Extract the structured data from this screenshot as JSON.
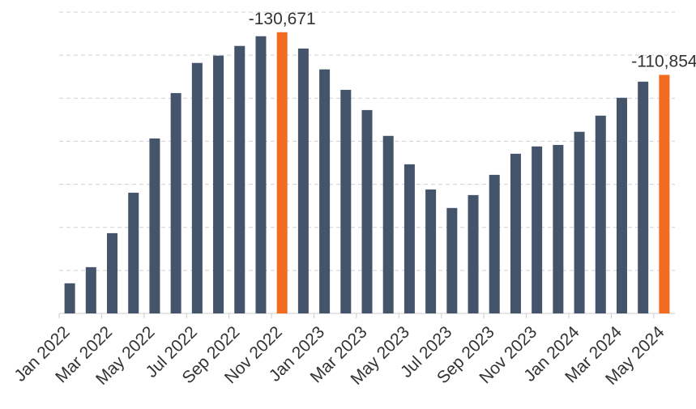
{
  "chart_data": {
    "type": "bar",
    "categories": [
      "Jan 2022",
      null,
      "Mar 2022",
      null,
      "May 2022",
      null,
      "Jul 2022",
      null,
      "Sep 2022",
      null,
      "Nov 2022",
      null,
      "Jan 2023",
      null,
      "Mar 2023",
      null,
      "May 2023",
      null,
      "Jul 2023",
      null,
      "Sep 2023",
      null,
      "Nov 2023",
      null,
      "Jan 2024",
      null,
      "Mar 2024",
      null,
      "May 2024"
    ],
    "values": [
      -14000,
      -21500,
      -37300,
      -56100,
      -81300,
      -102400,
      -116400,
      -119800,
      -124300,
      -128800,
      -130671,
      -123100,
      -113400,
      -103900,
      -94500,
      -82500,
      -69300,
      -57600,
      -49000,
      -55000,
      -64400,
      -74200,
      -77600,
      -78300,
      -84400,
      -91900,
      -100200,
      -107700,
      -110854
    ],
    "value_labels": [
      null,
      null,
      null,
      null,
      null,
      null,
      null,
      null,
      null,
      null,
      "-130,671",
      null,
      null,
      null,
      null,
      null,
      null,
      null,
      null,
      null,
      null,
      null,
      null,
      null,
      null,
      null,
      null,
      null,
      "-110,854"
    ],
    "colors": [
      "#44546a",
      "#44546a",
      "#44546a",
      "#44546a",
      "#44546a",
      "#44546a",
      "#44546a",
      "#44546a",
      "#44546a",
      "#44546a",
      "#f26b21",
      "#44546a",
      "#44546a",
      "#44546a",
      "#44546a",
      "#44546a",
      "#44546a",
      "#44546a",
      "#44546a",
      "#44546a",
      "#44546a",
      "#44546a",
      "#44546a",
      "#44546a",
      "#44546a",
      "#44546a",
      "#44546a",
      "#44546a",
      "#f26b21"
    ],
    "ylim": [
      0,
      -140000
    ],
    "yticks": [
      0,
      -20000,
      -40000,
      -60000,
      -80000,
      -100000,
      -120000,
      -140000
    ],
    "grid": true
  }
}
